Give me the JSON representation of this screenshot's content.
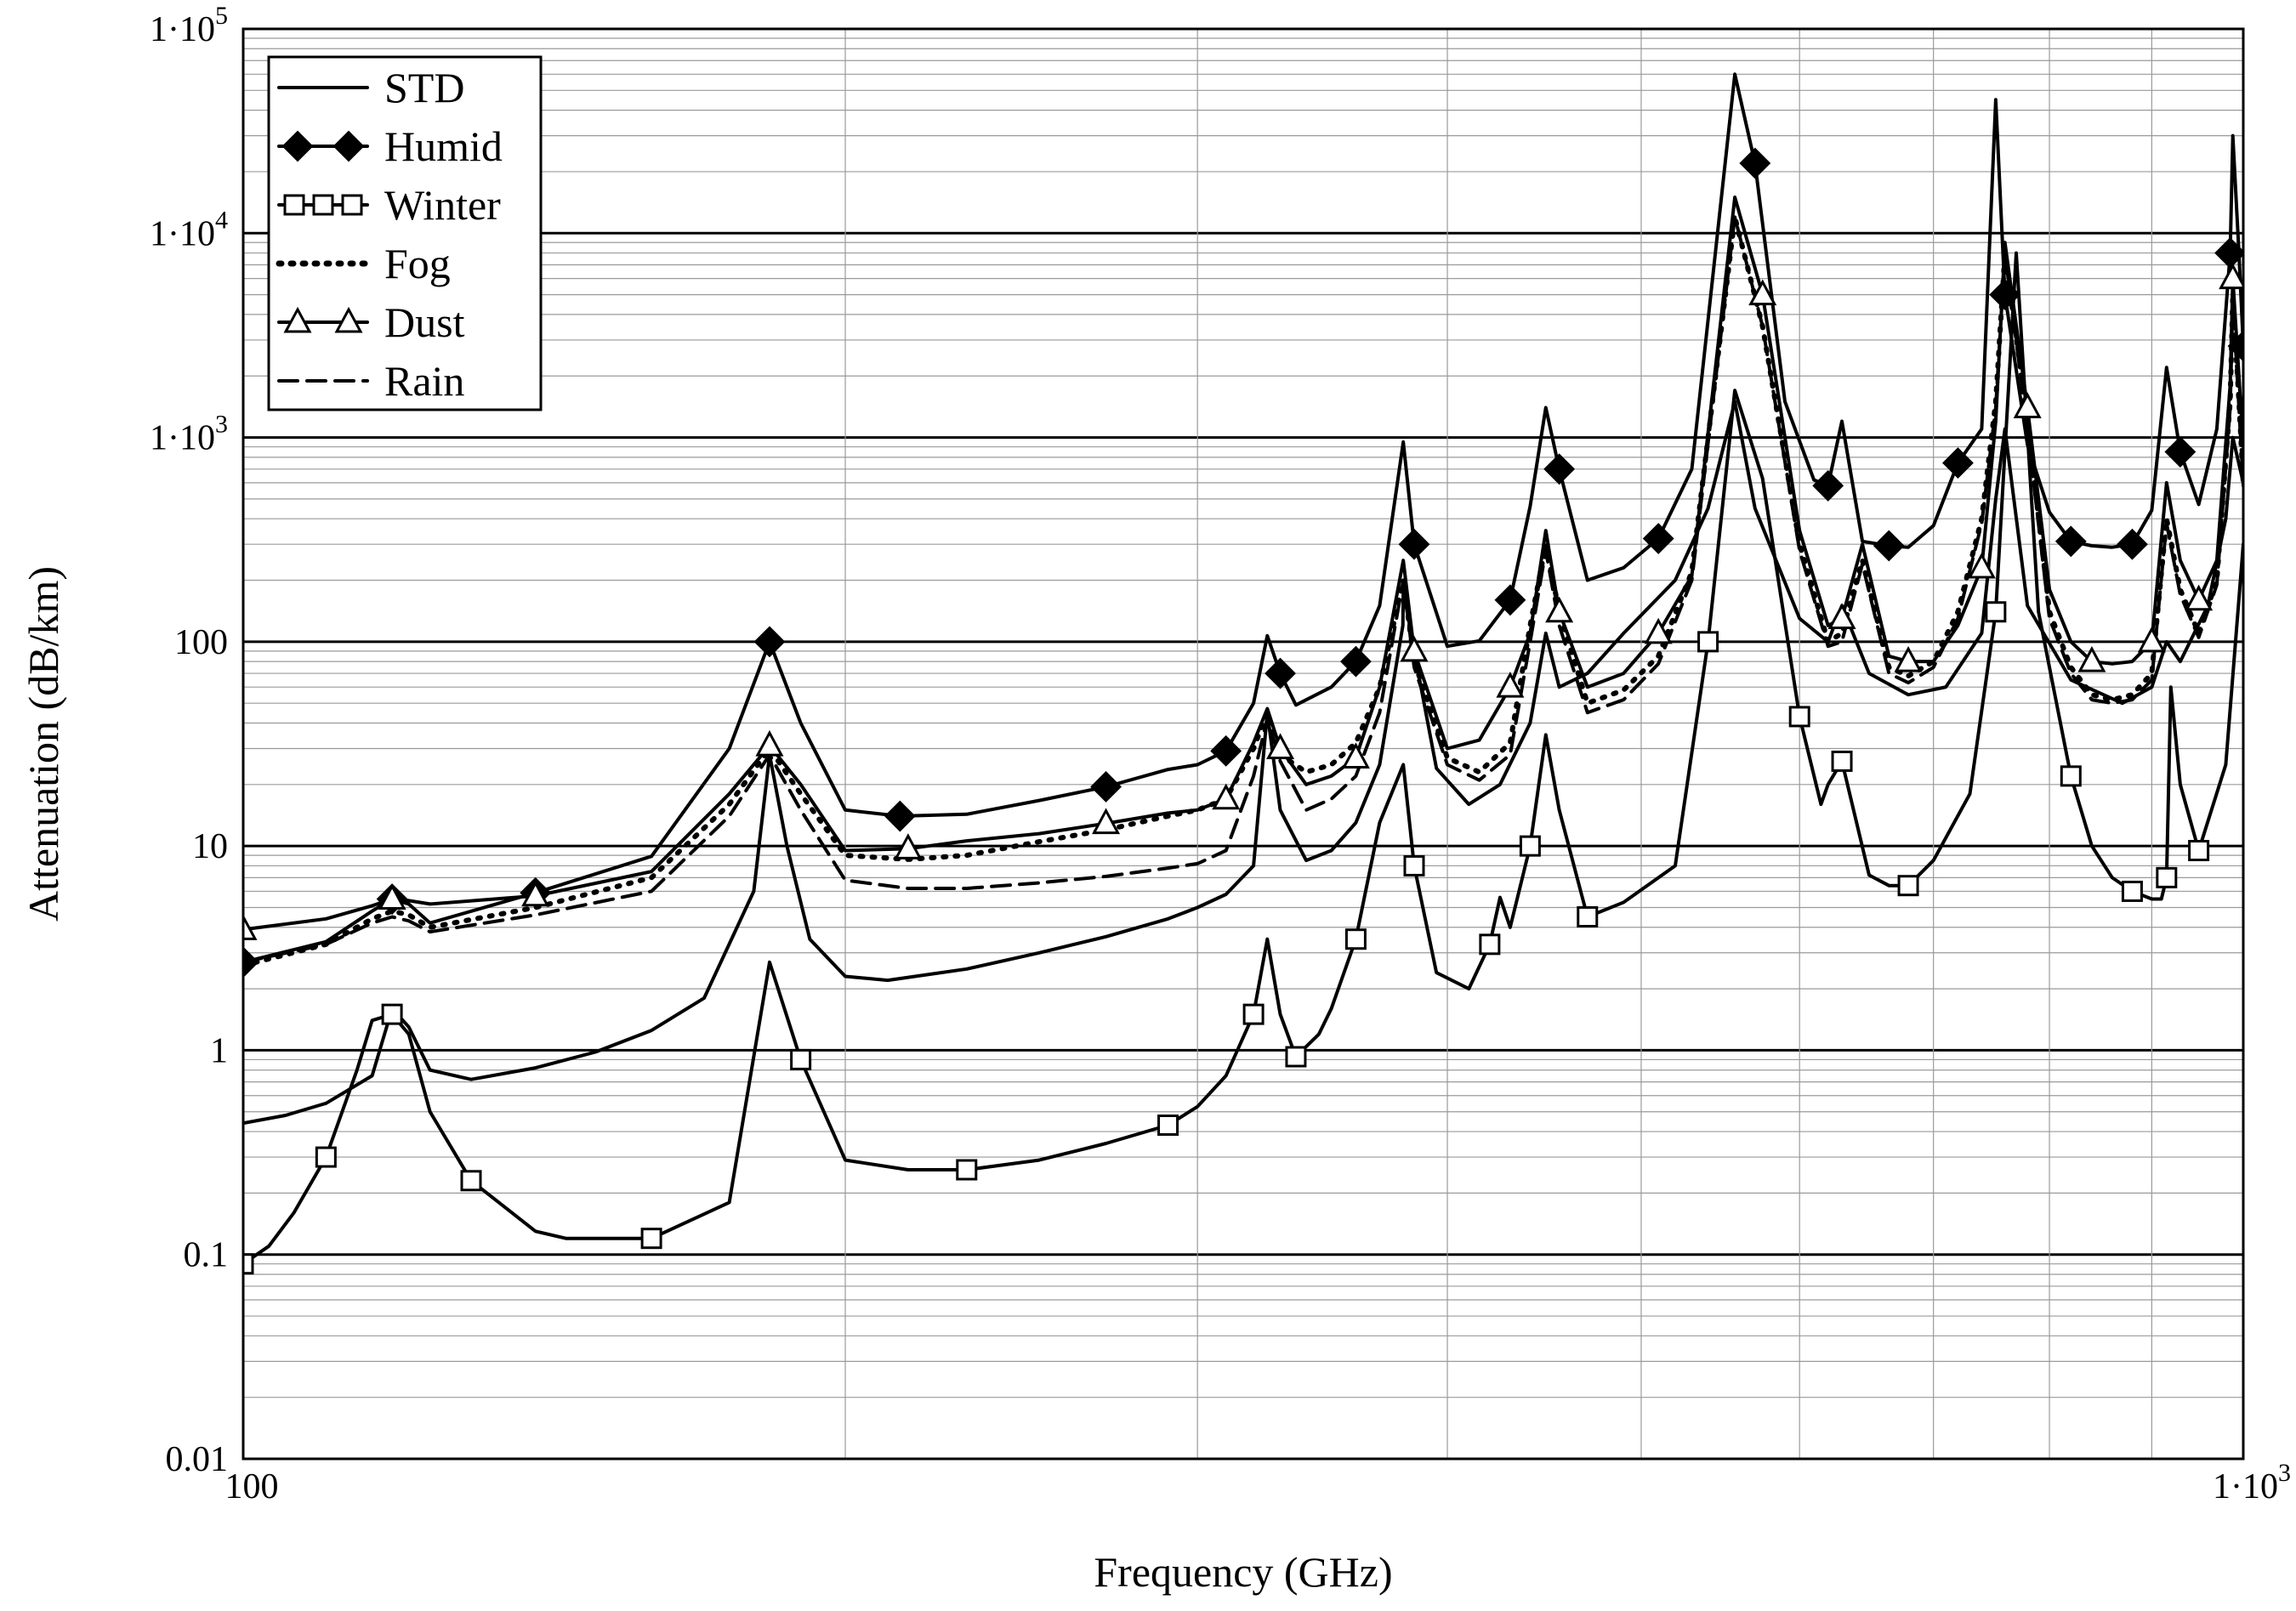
{
  "chart_data": {
    "type": "line",
    "xlabel": "Frequency (GHz)",
    "ylabel": "Attenuation (dB/km)",
    "x_scale": "log",
    "y_scale": "log",
    "xlim": [
      100,
      1000
    ],
    "ylim": [
      0.01,
      100000
    ],
    "x_ticks": [
      {
        "value": 100,
        "base": "100",
        "exp": ""
      },
      {
        "value": 1000,
        "base": "1·10",
        "exp": "3"
      }
    ],
    "y_ticks": [
      {
        "value": 0.01,
        "base": "0.01",
        "exp": ""
      },
      {
        "value": 0.1,
        "base": "0.1",
        "exp": ""
      },
      {
        "value": 1,
        "base": "1",
        "exp": ""
      },
      {
        "value": 10,
        "base": "10",
        "exp": ""
      },
      {
        "value": 100,
        "base": "100",
        "exp": ""
      },
      {
        "value": 1000,
        "base": "1·10",
        "exp": "3"
      },
      {
        "value": 10000,
        "base": "1·10",
        "exp": "4"
      },
      {
        "value": 100000,
        "base": "1·10",
        "exp": "5"
      }
    ],
    "grid": true,
    "legend_position": "top-left",
    "series": [
      {
        "name": "STD",
        "style": "solid",
        "marker": "none",
        "x": [
          100,
          105,
          110,
          116,
          118.7,
          121,
          124,
          130,
          140,
          150,
          160,
          170,
          180,
          183.3,
          187,
          192,
          200,
          210,
          230,
          250,
          270,
          290,
          300,
          310,
          320,
          325.1,
          330,
          340,
          350,
          360,
          370,
          380,
          380.2,
          385,
          395,
          410,
          425,
          440,
          448,
          455,
          470,
          490,
          520,
          540,
          556.9,
          570,
          600,
          620,
          630,
          650,
          680,
          710,
          740,
          752,
          760,
          780,
          820,
          870,
          900,
          915.5,
          930,
          960,
          980,
          988,
          1000
        ],
        "values": [
          0.44,
          0.48,
          0.55,
          0.75,
          1.6,
          1.3,
          0.8,
          0.72,
          0.82,
          0.98,
          1.25,
          1.8,
          6,
          28,
          10,
          3.5,
          2.3,
          2.2,
          2.5,
          3,
          3.6,
          4.4,
          5,
          5.8,
          8,
          45,
          15,
          8.5,
          9.5,
          13,
          25,
          120,
          180,
          90,
          24,
          16,
          20,
          40,
          110,
          60,
          70,
          110,
          200,
          450,
          1500,
          450,
          130,
          100,
          150,
          70,
          55,
          60,
          110,
          500,
          1100,
          150,
          65,
          50,
          60,
          100,
          80,
          150,
          400,
          1000,
          600
        ]
      },
      {
        "name": "Humid",
        "style": "solid",
        "marker": "diamond",
        "x": [
          100,
          110,
          116,
          118.7,
          121,
          124,
          140,
          160,
          175,
          183.3,
          190,
          200,
          213,
          230,
          250,
          270,
          290,
          300,
          310,
          320,
          325.1,
          330,
          336,
          350,
          360,
          370,
          380.2,
          385,
          400,
          415,
          430,
          440,
          448,
          455,
          470,
          490,
          510,
          530,
          556.9,
          570,
          590,
          610,
          620,
          630,
          645,
          665,
          680,
          700,
          720,
          740,
          752,
          760,
          780,
          800,
          820,
          840,
          860,
          880,
          900,
          915.5,
          930,
          950,
          970,
          985,
          988,
          995,
          1000
        ],
        "values": [
          2.7,
          3.4,
          4.8,
          5.5,
          5.2,
          4.2,
          5.9,
          8.9,
          30,
          100,
          40,
          15,
          14,
          14.3,
          16.7,
          19.5,
          23.7,
          25,
          29.2,
          50,
          107,
          70,
          49,
          60,
          80,
          150,
          950,
          300,
          95,
          101,
          160,
          460,
          1400,
          700,
          200,
          230,
          320,
          700,
          60000,
          22000,
          1500,
          620,
          580,
          1200,
          310,
          295,
          290,
          370,
          750,
          1100,
          45000,
          5000,
          920,
          430,
          310,
          295,
          290,
          300,
          440,
          2200,
          850,
          470,
          1100,
          8000,
          30000,
          8000,
          2800
        ]
      },
      {
        "name": "Winter",
        "style": "solid",
        "marker": "square",
        "x": [
          100,
          103,
          106,
          110,
          114,
          116,
          118.7,
          121,
          124,
          130,
          140,
          145,
          160,
          175,
          183.3,
          190,
          200,
          215,
          230,
          250,
          270,
          290,
          300,
          310,
          320,
          325.1,
          330,
          336,
          345,
          350,
          360,
          370,
          380.2,
          385,
          395,
          410,
          420,
          425,
          430,
          440,
          448,
          455,
          470,
          490,
          520,
          540,
          556.9,
          575,
          600,
          615,
          620,
          630,
          650,
          665,
          680,
          700,
          730,
          752,
          770,
          790,
          820,
          840,
          860,
          880,
          900,
          910,
          915.5,
          920,
          930,
          950,
          980,
          1000
        ],
        "values": [
          0.09,
          0.11,
          0.16,
          0.3,
          0.8,
          1.4,
          1.5,
          1.2,
          0.5,
          0.23,
          0.13,
          0.12,
          0.12,
          0.18,
          2.7,
          0.9,
          0.29,
          0.26,
          0.26,
          0.29,
          0.35,
          0.43,
          0.53,
          0.75,
          1.5,
          3.5,
          1.5,
          0.93,
          1.2,
          1.6,
          3.5,
          13,
          25,
          8,
          2.4,
          2,
          3.3,
          5.6,
          4,
          10,
          35,
          15,
          4.5,
          5.3,
          8,
          100,
          1700,
          630,
          43,
          16,
          20,
          26,
          7.2,
          6.4,
          6.4,
          8.5,
          18,
          140,
          8000,
          140,
          22,
          10,
          7,
          6,
          5.5,
          5.5,
          7,
          60,
          20,
          9.5,
          25,
          300
        ]
      },
      {
        "name": "Fog",
        "style": "dotted",
        "marker": "none",
        "x": [
          100,
          110,
          116,
          118.7,
          121,
          124,
          140,
          160,
          175,
          183.3,
          190,
          200,
          215,
          230,
          250,
          270,
          290,
          300,
          310,
          320,
          325.1,
          330,
          340,
          350,
          360,
          370,
          380.2,
          385,
          400,
          415,
          430,
          440,
          448,
          455,
          470,
          490,
          510,
          530,
          556.9,
          575,
          600,
          620,
          630,
          645,
          665,
          680,
          700,
          720,
          740,
          752,
          760,
          780,
          800,
          820,
          840,
          860,
          880,
          900,
          915.5,
          930,
          950,
          970,
          985,
          988,
          995,
          1000
        ],
        "values": [
          2.6,
          3.3,
          4.4,
          4.8,
          4.6,
          4,
          5,
          7,
          16,
          30,
          18,
          9,
          8.6,
          9,
          10.5,
          12,
          14,
          15,
          17,
          30,
          45,
          28,
          23,
          25,
          32,
          60,
          200,
          80,
          27,
          23,
          32,
          120,
          300,
          140,
          50,
          58,
          85,
          220,
          12000,
          3500,
          300,
          100,
          110,
          250,
          75,
          68,
          80,
          140,
          400,
          1500,
          8000,
          1200,
          140,
          75,
          55,
          52,
          55,
          70,
          400,
          180,
          110,
          200,
          1500,
          5000,
          1500,
          600
        ]
      },
      {
        "name": "Dust",
        "style": "solid",
        "marker": "triangle",
        "x": [
          100,
          110,
          116,
          118.7,
          121,
          124,
          140,
          160,
          175,
          183.3,
          190,
          200,
          215,
          230,
          250,
          270,
          290,
          300,
          310,
          320,
          325.1,
          330,
          340,
          350,
          360,
          370,
          380.2,
          385,
          400,
          415,
          430,
          440,
          448,
          455,
          470,
          490,
          510,
          530,
          556.9,
          575,
          600,
          620,
          630,
          645,
          665,
          680,
          700,
          720,
          740,
          752,
          760,
          780,
          800,
          820,
          840,
          860,
          880,
          900,
          915.5,
          930,
          950,
          970,
          985,
          988,
          995,
          1000
        ],
        "values": [
          3.9,
          4.4,
          5.1,
          5.5,
          5.4,
          5.2,
          5.7,
          7.5,
          18,
          31,
          20,
          9.5,
          9.7,
          10.6,
          11.5,
          12.9,
          14.5,
          15,
          17,
          32,
          47,
          30,
          20,
          22,
          27,
          60,
          250,
          90,
          30,
          33,
          60,
          110,
          350,
          140,
          60,
          70,
          110,
          210,
          15000,
          5000,
          350,
          120,
          130,
          300,
          85,
          80,
          80,
          120,
          230,
          1200,
          9000,
          1400,
          180,
          100,
          80,
          78,
          80,
          100,
          600,
          250,
          160,
          250,
          1800,
          6000,
          2000,
          900
        ]
      },
      {
        "name": "Rain",
        "style": "dashed",
        "marker": "none",
        "x": [
          100,
          110,
          116,
          118.7,
          121,
          124,
          140,
          160,
          175,
          183.3,
          190,
          200,
          215,
          230,
          250,
          270,
          290,
          300,
          310,
          320,
          325.1,
          330,
          340,
          350,
          360,
          370,
          380.2,
          385,
          400,
          415,
          430,
          440,
          448,
          455,
          470,
          490,
          510,
          530,
          556.9,
          575,
          600,
          620,
          630,
          645,
          665,
          680,
          700,
          720,
          740,
          752,
          760,
          780,
          800,
          820,
          840,
          860,
          880,
          900,
          915.5,
          930,
          950,
          970,
          985,
          988,
          995,
          1000
        ],
        "values": [
          2.7,
          3.3,
          4.2,
          4.5,
          4.3,
          3.8,
          4.6,
          6,
          14,
          28,
          15,
          6.8,
          6.2,
          6.2,
          6.6,
          7.1,
          7.8,
          8.2,
          9.5,
          22,
          42,
          26,
          15,
          17,
          22,
          45,
          200,
          75,
          25,
          21,
          28,
          100,
          280,
          120,
          45,
          52,
          78,
          200,
          12000,
          3500,
          280,
          95,
          100,
          240,
          70,
          63,
          75,
          130,
          380,
          1400,
          8000,
          1100,
          130,
          70,
          52,
          50,
          52,
          65,
          380,
          170,
          105,
          190,
          1400,
          4800,
          1400,
          580
        ]
      }
    ]
  }
}
